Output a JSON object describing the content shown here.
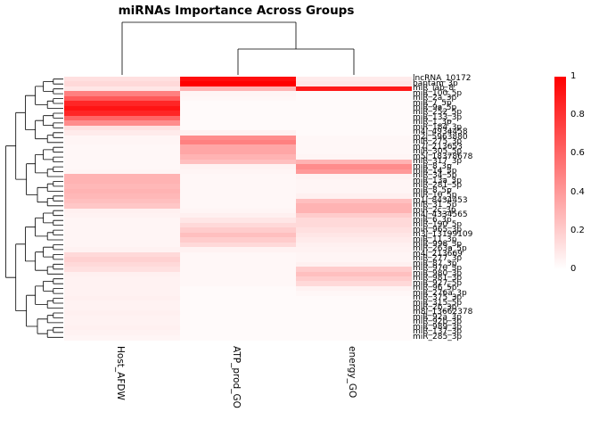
{
  "title": "miRNAs Importance Across Groups",
  "legend": {
    "ticks": [
      "1",
      "0.8",
      "0.6",
      "0.4",
      "0.2",
      "0"
    ],
    "min": 0,
    "max": 1
  },
  "colors": {
    "high": "#ff0000",
    "low": "#ffffff"
  },
  "chart_data": {
    "type": "heatmap",
    "title": "miRNAs Importance Across Groups",
    "columns": [
      "Host_AFDW",
      "ATP_prod_GO",
      "energy_GO"
    ],
    "color_scale": {
      "min": 0,
      "max": 1,
      "low": "#ffffff",
      "high": "#ff0000"
    },
    "legend_position": "right",
    "row_dendrogram": true,
    "col_dendrogram": true,
    "rows": [
      "lncRNA_10172",
      "bantam_3p",
      "miR_iab_8",
      "miR_100_5p",
      "miR_2a_3p",
      "miR_7_5p",
      "miR_9a_5p",
      "miR_252_5p",
      "miR_133_3p",
      "miR_1_3p",
      "miR_184_3p",
      "m4l_4934458",
      "m2l_5963880",
      "miR_275_3p",
      "m7l_213653",
      "miR_305_5p",
      "m5l_18378678",
      "miR_317_3p",
      "miR_8_3p",
      "miR_14_3p",
      "miR_34_5p",
      "miR_13a_3p",
      "miR_281_5p",
      "miR_8_5p",
      "miR_10_5p",
      "m1l_8434453",
      "miR_31_5p",
      "miR_2c_3p",
      "m4l_4334565",
      "miR_6_3p",
      "miR_190_5p",
      "miR_965_3p",
      "m3l_13199109",
      "miR_11_3p",
      "miR_998_3p",
      "miR_263a_5p",
      "m4l_213669",
      "miR_277_3p",
      "miR_87_3p",
      "miR_970_3p",
      "miR_980_3p",
      "miR_981_3p",
      "miR_927_5p",
      "miR_96_5p",
      "miR_276a_3p",
      "miR_375_3p",
      "miR_315_5p",
      "miR_2b_3p",
      "m8l_13662378",
      "miR_92a_3p",
      "miR_92b_3p",
      "miR_989_3p",
      "miR_137_3p",
      "miR_285_3p"
    ],
    "values": [
      [
        0.12,
        0.95,
        0.08
      ],
      [
        0.15,
        1.0,
        0.1
      ],
      [
        0.1,
        0.3,
        0.9
      ],
      [
        0.5,
        0.04,
        0.02
      ],
      [
        0.65,
        0.03,
        0.02
      ],
      [
        0.85,
        0.02,
        0.02
      ],
      [
        0.92,
        0.02,
        0.02
      ],
      [
        0.85,
        0.02,
        0.02
      ],
      [
        0.6,
        0.02,
        0.02
      ],
      [
        0.45,
        0.02,
        0.02
      ],
      [
        0.12,
        0.02,
        0.02
      ],
      [
        0.08,
        0.05,
        0.02
      ],
      [
        0.04,
        0.45,
        0.03
      ],
      [
        0.04,
        0.5,
        0.03
      ],
      [
        0.03,
        0.35,
        0.03
      ],
      [
        0.03,
        0.35,
        0.03
      ],
      [
        0.03,
        0.3,
        0.04
      ],
      [
        0.03,
        0.25,
        0.3
      ],
      [
        0.03,
        0.05,
        0.45
      ],
      [
        0.04,
        0.04,
        0.4
      ],
      [
        0.3,
        0.03,
        0.05
      ],
      [
        0.3,
        0.03,
        0.04
      ],
      [
        0.28,
        0.03,
        0.04
      ],
      [
        0.3,
        0.03,
        0.04
      ],
      [
        0.28,
        0.03,
        0.06
      ],
      [
        0.25,
        0.03,
        0.25
      ],
      [
        0.22,
        0.03,
        0.3
      ],
      [
        0.06,
        0.04,
        0.3
      ],
      [
        0.05,
        0.06,
        0.2
      ],
      [
        0.04,
        0.1,
        0.15
      ],
      [
        0.04,
        0.15,
        0.15
      ],
      [
        0.04,
        0.2,
        0.12
      ],
      [
        0.04,
        0.25,
        0.1
      ],
      [
        0.04,
        0.2,
        0.08
      ],
      [
        0.04,
        0.15,
        0.06
      ],
      [
        0.05,
        0.05,
        0.05
      ],
      [
        0.15,
        0.03,
        0.04
      ],
      [
        0.18,
        0.03,
        0.04
      ],
      [
        0.15,
        0.03,
        0.06
      ],
      [
        0.12,
        0.03,
        0.2
      ],
      [
        0.06,
        0.03,
        0.25
      ],
      [
        0.05,
        0.03,
        0.2
      ],
      [
        0.05,
        0.03,
        0.15
      ],
      [
        0.05,
        0.02,
        0.05
      ],
      [
        0.05,
        0.02,
        0.03
      ],
      [
        0.06,
        0.02,
        0.02
      ],
      [
        0.05,
        0.02,
        0.02
      ],
      [
        0.05,
        0.02,
        0.02
      ],
      [
        0.06,
        0.02,
        0.02
      ],
      [
        0.05,
        0.02,
        0.02
      ],
      [
        0.05,
        0.02,
        0.02
      ],
      [
        0.06,
        0.02,
        0.02
      ],
      [
        0.05,
        0.02,
        0.02
      ],
      [
        0.04,
        0.02,
        0.02
      ]
    ]
  }
}
